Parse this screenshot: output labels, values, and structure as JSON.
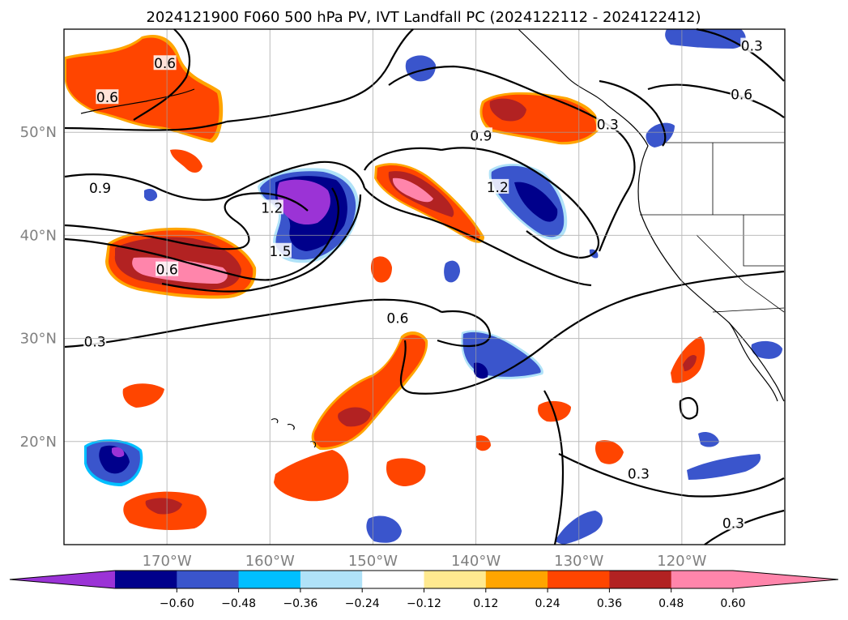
{
  "title": "2024121900 F060 500 hPa PV, IVT Landfall PC (2024122112 - 2024122412)",
  "map": {
    "extent": {
      "lon_min": -180,
      "lon_max": -110,
      "lat_min": 10,
      "lat_max": 60
    },
    "lat_ticks": [
      {
        "value": 20,
        "label": "20°N"
      },
      {
        "value": 30,
        "label": "30°N"
      },
      {
        "value": 40,
        "label": "40°N"
      },
      {
        "value": 50,
        "label": "50°N"
      }
    ],
    "lon_ticks": [
      {
        "value": -170,
        "label": "170°W"
      },
      {
        "value": -160,
        "label": "160°W"
      },
      {
        "value": -150,
        "label": "150°W"
      },
      {
        "value": -140,
        "label": "140°W"
      },
      {
        "value": -130,
        "label": "130°W"
      },
      {
        "value": -120,
        "label": "120°W"
      }
    ],
    "gridlines": true,
    "contour_labels": [
      {
        "text": "0.6",
        "lon": -170.2,
        "lat": 56.6
      },
      {
        "text": "0.6",
        "lon": -175.8,
        "lat": 53.3
      },
      {
        "text": "0.9",
        "lon": -176.5,
        "lat": 44.5
      },
      {
        "text": "1.2",
        "lon": -159.8,
        "lat": 42.6
      },
      {
        "text": "1.5",
        "lon": -159.0,
        "lat": 38.4
      },
      {
        "text": "0.6",
        "lon": -170.0,
        "lat": 36.6
      },
      {
        "text": "0.3",
        "lon": -177.0,
        "lat": 29.6
      },
      {
        "text": "0.6",
        "lon": -147.6,
        "lat": 31.9
      },
      {
        "text": "0.9",
        "lon": -139.5,
        "lat": 49.6
      },
      {
        "text": "1.2",
        "lon": -137.9,
        "lat": 44.6
      },
      {
        "text": "0.3",
        "lon": -127.2,
        "lat": 50.7
      },
      {
        "text": "0.3",
        "lon": -113.2,
        "lat": 58.3
      },
      {
        "text": "0.6",
        "lon": -114.2,
        "lat": 53.6
      },
      {
        "text": "0.3",
        "lon": -124.2,
        "lat": 16.8
      },
      {
        "text": "0.3",
        "lon": -115.0,
        "lat": 12.0
      }
    ]
  },
  "colorbar": {
    "tick_labels": [
      "−0.60",
      "−0.48",
      "−0.36",
      "−0.24",
      "−0.12",
      "0.12",
      "0.24",
      "0.36",
      "0.48",
      "0.60"
    ],
    "colors": [
      "#9b33d6",
      "#00008b",
      "#3a55cc",
      "#00bfff",
      "#b0e2f8",
      "#ffffff",
      "#ffe98f",
      "#ffa500",
      "#ff4500",
      "#b22222",
      "#ff85ab",
      "#ff85ab"
    ],
    "extend": "both"
  },
  "colors": {
    "purple": "#9b33d6",
    "navy": "#00008b",
    "royal": "#3a55cc",
    "sky": "#00bfff",
    "pale_blue": "#b0e2f8",
    "pale_yellow": "#ffe98f",
    "orange": "#ffa500",
    "red_orange": "#ff4500",
    "dark_red": "#b22222",
    "pink": "#ff85ab"
  }
}
